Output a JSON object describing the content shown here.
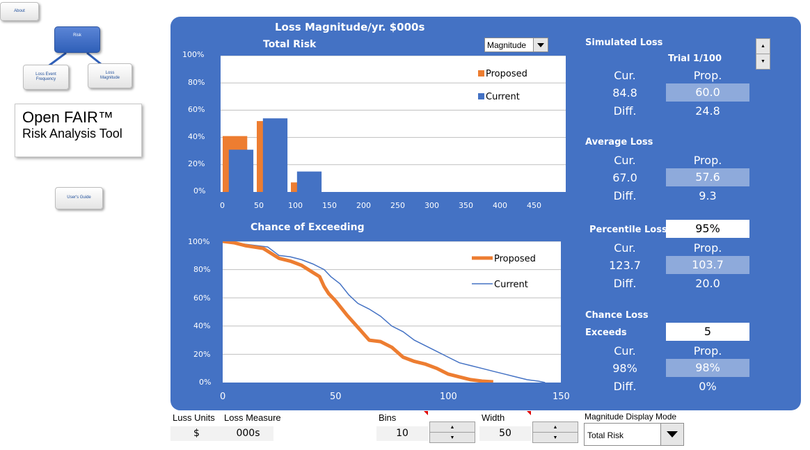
{
  "nav": {
    "about_label": "About",
    "risk_label": "Risk",
    "lef_label": "Loss Event Frequency",
    "lm_label": "Loss Magnitude",
    "users_guide_label": "User's Guide"
  },
  "app": {
    "title_line1": "Open FAIR™",
    "title_line2": "Risk Analysis Tool"
  },
  "panel": {
    "title": "Loss Magnitude/yr. $000s",
    "dropdown_value": "Magnitude"
  },
  "colors": {
    "panel": "#4472c4",
    "proposed": "#ed7d31",
    "current": "#4472c4",
    "prop_box": "#8eaadb"
  },
  "chart_data": [
    {
      "type": "bar",
      "title": "Total Risk",
      "categories": [
        "0-50",
        "50-100",
        "100-150"
      ],
      "bin_starts": [
        0,
        50,
        100
      ],
      "series": [
        {
          "name": "Proposed",
          "values": [
            0.41,
            0.52,
            0.07
          ]
        },
        {
          "name": "Current",
          "values": [
            0.31,
            0.54,
            0.15
          ]
        }
      ],
      "xticks": [
        "0",
        "50",
        "100",
        "150",
        "200",
        "250",
        "300",
        "350",
        "400",
        "450"
      ],
      "yticks": [
        "0%",
        "20%",
        "40%",
        "60%",
        "80%",
        "100%"
      ],
      "xlim": [
        0,
        500
      ],
      "ylim": [
        0,
        1
      ],
      "legend": "top-right"
    },
    {
      "type": "line",
      "title": "Chance of Exceeding",
      "series": [
        {
          "name": "Proposed",
          "x": [
            0,
            5,
            10,
            18,
            20,
            25,
            30,
            35,
            40,
            43,
            45,
            47,
            50,
            55,
            60,
            65,
            70,
            75,
            80,
            85,
            90,
            95,
            100,
            105,
            110,
            115,
            120
          ],
          "y": [
            1.0,
            0.99,
            0.97,
            0.95,
            0.93,
            0.88,
            0.86,
            0.83,
            0.78,
            0.75,
            0.68,
            0.63,
            0.58,
            0.48,
            0.39,
            0.3,
            0.29,
            0.25,
            0.18,
            0.15,
            0.13,
            0.1,
            0.06,
            0.04,
            0.02,
            0.01,
            0.005
          ]
        },
        {
          "name": "Current",
          "x": [
            0,
            10,
            20,
            25,
            30,
            35,
            40,
            45,
            48,
            52,
            56,
            60,
            65,
            70,
            75,
            80,
            85,
            90,
            95,
            100,
            105,
            110,
            115,
            120,
            125,
            130,
            135,
            140,
            143
          ],
          "y": [
            1.0,
            0.98,
            0.96,
            0.9,
            0.89,
            0.87,
            0.84,
            0.8,
            0.75,
            0.7,
            0.62,
            0.56,
            0.52,
            0.47,
            0.4,
            0.36,
            0.3,
            0.26,
            0.22,
            0.18,
            0.14,
            0.12,
            0.1,
            0.08,
            0.06,
            0.04,
            0.02,
            0.01,
            0.0
          ]
        }
      ],
      "xticks": [
        "0",
        "50",
        "100",
        "150"
      ],
      "yticks": [
        "0%",
        "20%",
        "40%",
        "60%",
        "80%",
        "100%"
      ],
      "xlim": [
        0,
        150
      ],
      "ylim": [
        0,
        1
      ],
      "legend": "top-right"
    }
  ],
  "stats": {
    "cur_label": "Cur.",
    "prop_label": "Prop.",
    "diff_label": "Diff.",
    "simulated": {
      "title": "Simulated Loss",
      "trial": "Trial 1/100",
      "cur": "84.8",
      "prop": "60.0",
      "diff": "24.8"
    },
    "average": {
      "title": "Average Loss",
      "cur": "67.0",
      "prop": "57.6",
      "diff": "9.3"
    },
    "percentile": {
      "title": "Percentile Loss",
      "input": "95%",
      "cur": "123.7",
      "prop": "103.7",
      "diff": "20.0"
    },
    "chance": {
      "title_line1": "Chance Loss",
      "title_line2": "Exceeds",
      "input": "5",
      "cur": "98%",
      "prop": "98%",
      "diff": "0%"
    }
  },
  "bottom": {
    "loss_units_label": "Luss Units",
    "loss_measure_label": "Loss Measure",
    "loss_units_value": "$",
    "loss_measure_value": "000s",
    "bins_label": "Bins",
    "bins_value": "10",
    "width_label": "Width",
    "width_value": "50",
    "display_mode_label": "Magnitude Display Mode",
    "display_mode_value": "Total Risk"
  },
  "icons": {
    "up": "▲",
    "down": "▼"
  }
}
